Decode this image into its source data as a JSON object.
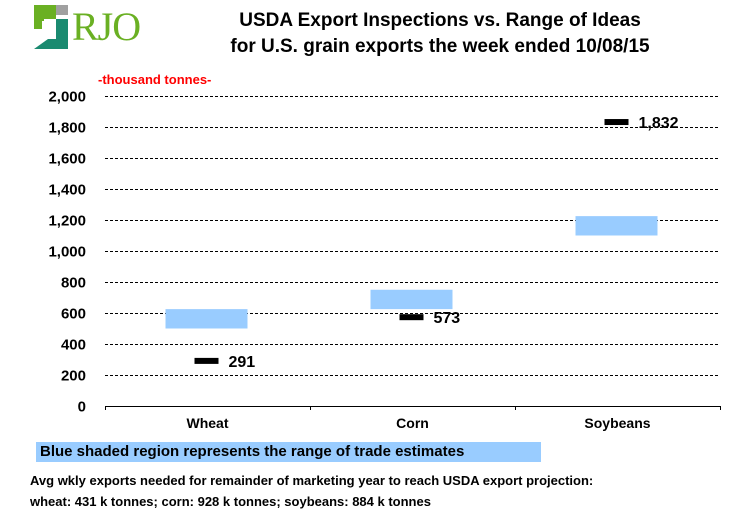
{
  "logo": {
    "text": "RJO",
    "colors": {
      "green": "#6ab023",
      "gray": "#a0a0a0",
      "teal": "#1a8a70"
    }
  },
  "header": {
    "title_line1": "USDA Export Inspections vs. Range of Ideas",
    "title_line2": "for U.S. grain exports the week ended 10/08/15",
    "units": "-thousand tonnes-"
  },
  "legend": {
    "text": "Blue shaded region represents the range of trade estimates",
    "color": "#99ccff"
  },
  "notes": {
    "line1": "Avg wkly exports needed for remainder of marketing year to reach USDA export projection:",
    "line2": "wheat: 431 k tonnes; corn: 928 k tonnes; soybeans: 884 k tonnes"
  },
  "chart_data": {
    "type": "range-marker",
    "title": "USDA Export Inspections vs. Range of Ideas for U.S. grain exports the week ended 10/08/15",
    "ylabel": "-thousand tonnes-",
    "xlabel": "",
    "ylim": [
      0,
      2000
    ],
    "yticks": [
      0,
      200,
      400,
      600,
      800,
      1000,
      1200,
      1400,
      1600,
      1800,
      2000
    ],
    "ytick_labels": [
      "0",
      "200",
      "400",
      "600",
      "800",
      "1,000",
      "1,200",
      "1,400",
      "1,600",
      "1,800",
      "2,000"
    ],
    "grid": true,
    "categories": [
      "Wheat",
      "Corn",
      "Soybeans"
    ],
    "series": [
      {
        "name": "Range of trade estimates",
        "low": [
          500,
          625,
          1100
        ],
        "high": [
          625,
          750,
          1225
        ],
        "color": "#99ccff"
      },
      {
        "name": "USDA Export Inspections",
        "values": [
          291,
          573,
          1832
        ],
        "labels": [
          "291",
          "573",
          "1,832"
        ],
        "color": "#000000"
      }
    ]
  }
}
